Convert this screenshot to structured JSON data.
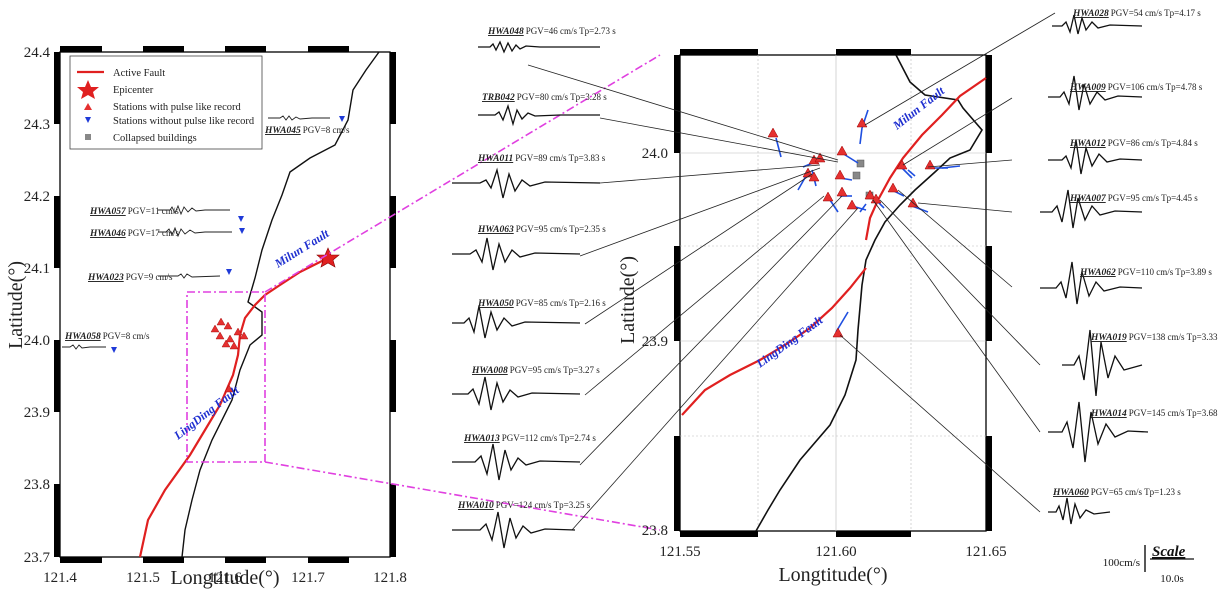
{
  "colors": {
    "fault": "#e02020",
    "coast": "#111111",
    "pulse": "#e53030",
    "nopulse": "#1f3ad8",
    "guide": "#e040e0",
    "arrow": "#1f4fe0",
    "building": "#888888"
  },
  "left_map": {
    "xlabel": "Longtitude(°)",
    "ylabel": "Latitude(°)",
    "x_ticks": [
      "121.4",
      "121.5",
      "121.6",
      "121.7",
      "121.8"
    ],
    "y_ticks": [
      "24.4",
      "24.3",
      "24.2",
      "24.1",
      "24.0",
      "23.9",
      "23.8",
      "23.7"
    ],
    "legend": [
      "Active Fault",
      "Epicenter",
      "Stations with pulse like record",
      "Stations without pulse like record",
      "Collapsed buildings"
    ],
    "fault_names": [
      "Milun Fault",
      "LingDing Fault"
    ],
    "stations": [
      {
        "code": "HWA045",
        "text": "PGV=8 cm/s"
      },
      {
        "code": "HWA057",
        "text": "PGV=11 cm/s"
      },
      {
        "code": "HWA046",
        "text": "PGV=17 cm/s"
      },
      {
        "code": "HWA023",
        "text": "PGV=9 cm/s"
      },
      {
        "code": "HWA058",
        "text": "PGV=8 cm/s"
      }
    ]
  },
  "right_map": {
    "xlabel": "Longtitude(°)",
    "ylabel": "Latitude(°)",
    "x_ticks": [
      "121.55",
      "121.60",
      "121.65"
    ],
    "y_ticks": [
      "24.0",
      "23.9",
      "23.8"
    ],
    "fault_names": [
      "Milun Fault",
      "LingDing Fault"
    ]
  },
  "left_waveforms": [
    {
      "code": "HWA048",
      "text": "PGV=46 cm/s Tp=2.73 s"
    },
    {
      "code": "TRB042",
      "text": "PGV=80 cm/s Tp=3.28 s"
    },
    {
      "code": "HWA011",
      "text": "PGV=89 cm/s Tp=3.83 s"
    },
    {
      "code": "HWA063",
      "text": "PGV=95 cm/s Tp=2.35 s"
    },
    {
      "code": "HWA050",
      "text": "PGV=85 cm/s Tp=2.16 s"
    },
    {
      "code": "HWA008",
      "text": "PGV=95 cm/s Tp=3.27 s"
    },
    {
      "code": "HWA013",
      "text": "PGV=112 cm/s Tp=2.74 s"
    },
    {
      "code": "HWA010",
      "text": "PGV=124 cm/s Tp=3.25 s"
    }
  ],
  "right_waveforms": [
    {
      "code": "HWA028",
      "text": "PGV=54 cm/s Tp=4.17 s"
    },
    {
      "code": "HWA009",
      "text": "PGV=106 cm/s Tp=4.78 s"
    },
    {
      "code": "HWA012",
      "text": "PGV=86 cm/s Tp=4.84 s"
    },
    {
      "code": "HWA007",
      "text": "PGV=95 cm/s Tp=4.45 s"
    },
    {
      "code": "HWA062",
      "text": "PGV=110 cm/s Tp=3.89 s"
    },
    {
      "code": "HWA019",
      "text": "PGV=138 cm/s Tp=3.33 s"
    },
    {
      "code": "HWA014",
      "text": "PGV=145 cm/s Tp=3.68 s"
    },
    {
      "code": "HWA060",
      "text": "PGV=65 cm/s Tp=1.23 s"
    }
  ],
  "scale": {
    "title": "Scale",
    "amplitude": "100cm/s",
    "time": "10.0s"
  }
}
